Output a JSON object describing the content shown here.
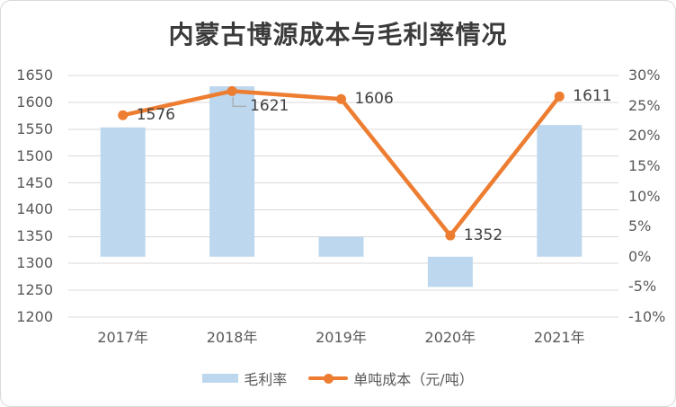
{
  "title": "内蒙古博源成本与毛利率情况",
  "colors": {
    "bar": "#BDD7EE",
    "line": "#ED7D31",
    "grid": "#D9D9D9",
    "axis_text": "#595959",
    "label_text": "#404040",
    "leader": "#A6A6A6",
    "border": "#D9D9D9",
    "title": "#3B3B3B"
  },
  "legend": {
    "items": [
      {
        "label": "毛利率",
        "type": "bar"
      },
      {
        "label": "单吨成本（元/吨）",
        "type": "line"
      }
    ]
  },
  "chart_data": {
    "type": "combo",
    "title": "内蒙古博源成本与毛利率情况",
    "categories": [
      "2017年",
      "2018年",
      "2019年",
      "2020年",
      "2021年"
    ],
    "series": [
      {
        "name": "毛利率",
        "type": "bar",
        "axis": "right",
        "unit": "%",
        "values": [
          21.4,
          28.2,
          3.3,
          -5.0,
          21.8
        ]
      },
      {
        "name": "单吨成本（元/吨）",
        "type": "line",
        "axis": "left",
        "unit": "元/吨",
        "values": [
          1576,
          1621,
          1606,
          1352,
          1611
        ],
        "labels": [
          "1576",
          "1621",
          "1606",
          "1352",
          "1611"
        ],
        "label_positions": [
          "right",
          "callout-below-right",
          "right",
          "right",
          "right"
        ]
      }
    ],
    "left_axis": {
      "min": 1200,
      "max": 1650,
      "step": 50,
      "ticks": [
        "1650",
        "1600",
        "1550",
        "1500",
        "1450",
        "1400",
        "1350",
        "1300",
        "1250",
        "1200"
      ]
    },
    "right_axis": {
      "min": -10,
      "max": 30,
      "step": 5,
      "ticks": [
        "30%",
        "25%",
        "20%",
        "15%",
        "10%",
        "5%",
        "0%",
        "-5%",
        "-10%"
      ]
    },
    "grid": true,
    "legend_position": "bottom"
  }
}
